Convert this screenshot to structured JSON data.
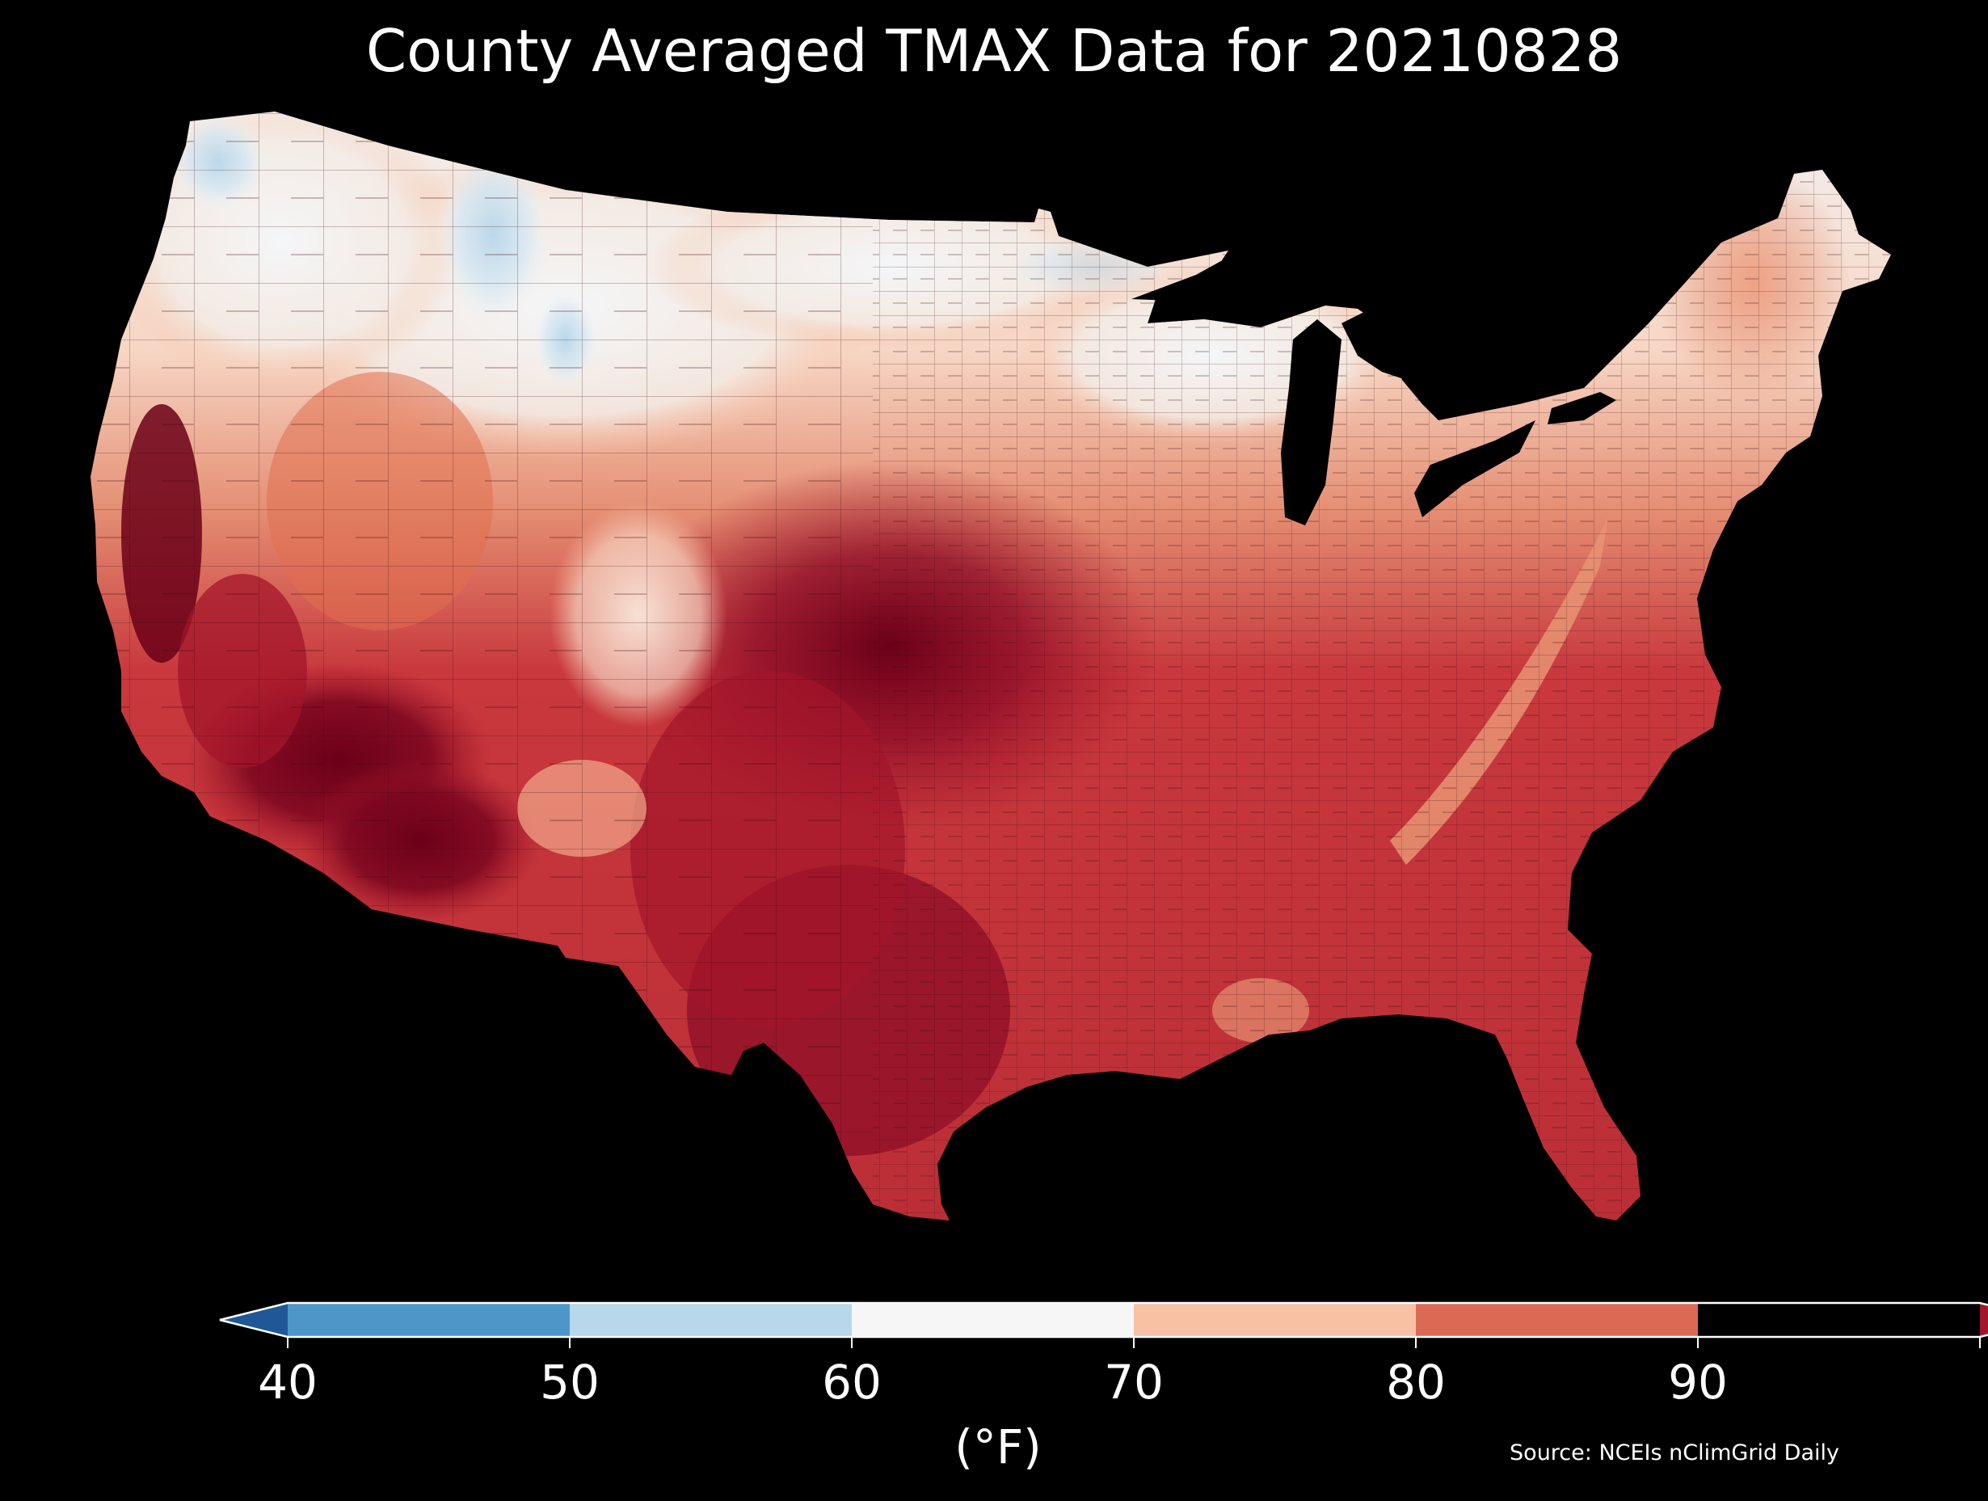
{
  "title": "County Averaged TMAX Data for 20210828",
  "colorbar": {
    "ticks": [
      "40",
      "50",
      "60",
      "70",
      "80",
      "90"
    ],
    "units_label": "(°F)",
    "bins": [
      {
        "range": [
          null,
          40
        ],
        "color": "#1f5797"
      },
      {
        "range": [
          40,
          50
        ],
        "color": "#4c97c8"
      },
      {
        "range": [
          50,
          60
        ],
        "color": "#b7d8ea"
      },
      {
        "range": [
          60,
          70
        ],
        "color": "#f6f6f6"
      },
      {
        "range": [
          70,
          80
        ],
        "color": "#f8c1a5"
      },
      {
        "range": [
          80,
          90
        ],
        "color": "#db6a55"
      },
      {
        "range": [
          90,
          null
        ],
        "color": "#a3162a"
      }
    ]
  },
  "source": "Source: NCEIs nClimGrid Daily",
  "map": {
    "region": "Contiguous United States",
    "variable": "TMAX",
    "background_color": "#000000",
    "hottest_color": "#6b0018",
    "regional_colors": {
      "pacific_northwest_coast": "#cfe2ef",
      "northern_rockies": "#dbe9f3",
      "north_plains": "#f4f4f4",
      "great_lakes": "#f3e3da",
      "northeast": "#e99c80",
      "central_plains": "#b8242f",
      "southern_plains": "#8e0d27",
      "desert_southwest": "#6b0018",
      "southeast": "#c33a3b",
      "appalachians": "#e69070",
      "rockies_colorado": "#f5d6c6"
    }
  }
}
